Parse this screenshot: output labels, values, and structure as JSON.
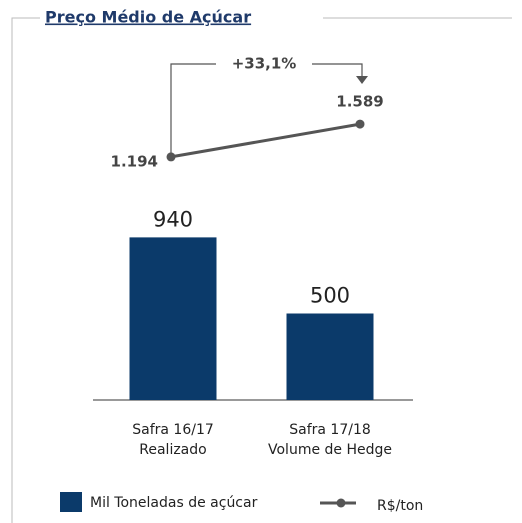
{
  "chart_data": {
    "type": "bar",
    "title": "Preço Médio de Açúcar",
    "categories": [
      [
        "Safra 16/17",
        "Realizado"
      ],
      [
        "Safra 17/18",
        "Volume de Hedge"
      ]
    ],
    "series": [
      {
        "name": "Mil Toneladas de açúcar",
        "type": "bar",
        "color": "#0b3a6a",
        "values": [
          940,
          500
        ]
      },
      {
        "name": "R$/ton",
        "type": "line",
        "axis": "y2",
        "color": "#555555",
        "values": [
          1194,
          1589
        ],
        "value_labels": [
          "1.194",
          "1.589"
        ]
      }
    ],
    "ylim": [
      0,
      1000
    ],
    "y2lim": [
      1000,
      2000
    ],
    "annotation": "+33,1%",
    "legend": "bottom"
  }
}
